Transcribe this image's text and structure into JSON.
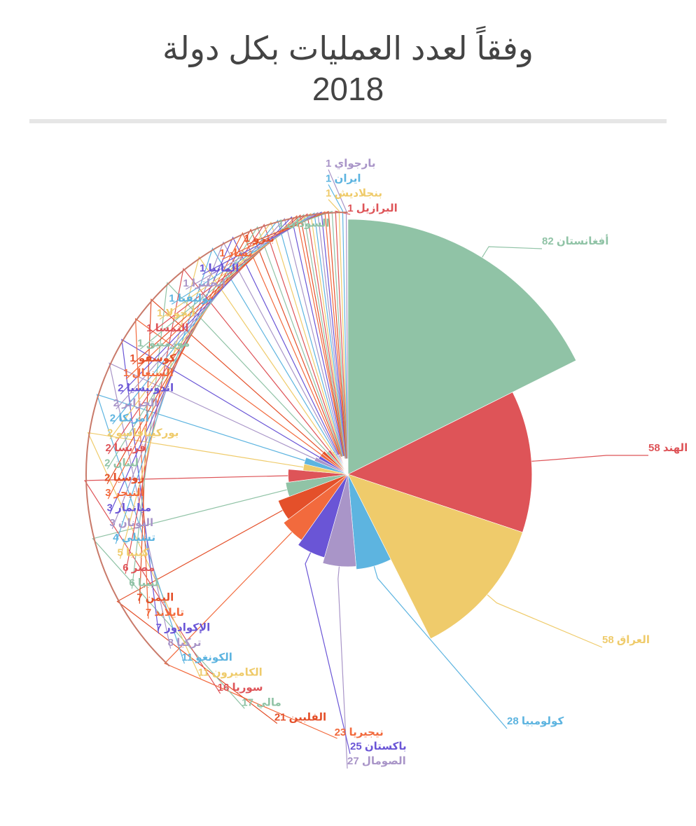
{
  "header": {
    "title_line1": "وفقاً لعدد العمليات بكل دولة",
    "title_line2": "2018"
  },
  "chart_data": {
    "type": "pie",
    "variant": "radius-proportional (variable-radius pie)",
    "slices": [
      {
        "label": "أفغانستان",
        "value": 82,
        "color": "#90c3a6"
      },
      {
        "label": "الهند",
        "value": 58,
        "color": "#de5458"
      },
      {
        "label": "العراق",
        "value": 58,
        "color": "#efcb6b"
      },
      {
        "label": "كولومبيا",
        "value": 28,
        "color": "#5db4e0"
      },
      {
        "label": "الصومال",
        "value": 27,
        "color": "#a995c8"
      },
      {
        "label": "باكستان",
        "value": 25,
        "color": "#6a55d6"
      },
      {
        "label": "نيجيريا",
        "value": 23,
        "color": "#f26a3d"
      },
      {
        "label": "الفلبين",
        "value": 21,
        "color": "#e4502a"
      },
      {
        "label": "مالي",
        "value": 17,
        "color": "#90c3a6"
      },
      {
        "label": "سوريا",
        "value": 16,
        "color": "#de5458"
      },
      {
        "label": "الكاميرون",
        "value": 11,
        "color": "#efcb6b"
      },
      {
        "label": "الكونغو",
        "value": 11,
        "color": "#5db4e0"
      },
      {
        "label": "تركيا",
        "value": 8,
        "color": "#a995c8"
      },
      {
        "label": "الإكوادور",
        "value": 7,
        "color": "#6a55d6"
      },
      {
        "label": "تايلاند",
        "value": 7,
        "color": "#f26a3d"
      },
      {
        "label": "اليمن",
        "value": 7,
        "color": "#e4502a"
      },
      {
        "label": "ليبيا",
        "value": 6,
        "color": "#90c3a6"
      },
      {
        "label": "مصر",
        "value": 6,
        "color": "#de5458"
      },
      {
        "label": "كينيا",
        "value": 5,
        "color": "#efcb6b"
      },
      {
        "label": "تشيلي",
        "value": 4,
        "color": "#5db4e0"
      },
      {
        "label": "اليونان",
        "value": 3,
        "color": "#a995c8"
      },
      {
        "label": "ميانمار",
        "value": 3,
        "color": "#6a55d6"
      },
      {
        "label": "النيجر",
        "value": 3,
        "color": "#f26a3d"
      },
      {
        "label": "روسيا",
        "value": 2,
        "color": "#e4502a"
      },
      {
        "label": "لبنان",
        "value": 2,
        "color": "#90c3a6"
      },
      {
        "label": "فرنسا",
        "value": 2,
        "color": "#de5458"
      },
      {
        "label": "بوركينافاسو",
        "value": 2,
        "color": "#efcb6b"
      },
      {
        "label": "أمريكا",
        "value": 2,
        "color": "#5db4e0"
      },
      {
        "label": "الجزائر",
        "value": 2,
        "color": "#a995c8"
      },
      {
        "label": "اندونيسيا",
        "value": 2,
        "color": "#6a55d6"
      },
      {
        "label": "السنغال",
        "value": 1,
        "color": "#f26a3d"
      },
      {
        "label": "كوسفو",
        "value": 1,
        "color": "#e4502a"
      },
      {
        "label": "موزمبيق",
        "value": 1,
        "color": "#90c3a6"
      },
      {
        "label": "النمسا",
        "value": 1,
        "color": "#de5458"
      },
      {
        "label": "أنجولا",
        "value": 1,
        "color": "#efcb6b"
      },
      {
        "label": "بوليفيا",
        "value": 1,
        "color": "#5db4e0"
      },
      {
        "label": "انجلترا",
        "value": 1,
        "color": "#a995c8"
      },
      {
        "label": "المانيا",
        "value": 1,
        "color": "#6a55d6"
      },
      {
        "label": "تشاد",
        "value": 1,
        "color": "#f26a3d"
      },
      {
        "label": "بيرو",
        "value": 1,
        "color": "#e4502a"
      },
      {
        "label": "السودان",
        "value": 1,
        "color": "#90c3a6"
      },
      {
        "label": "البرازيل",
        "value": 1,
        "color": "#de5458"
      },
      {
        "label": "بنجلاديش",
        "value": 1,
        "color": "#efcb6b"
      },
      {
        "label": "ايران",
        "value": 1,
        "color": "#5db4e0"
      },
      {
        "label": "بارجواي",
        "value": 1,
        "color": "#a995c8"
      }
    ]
  }
}
